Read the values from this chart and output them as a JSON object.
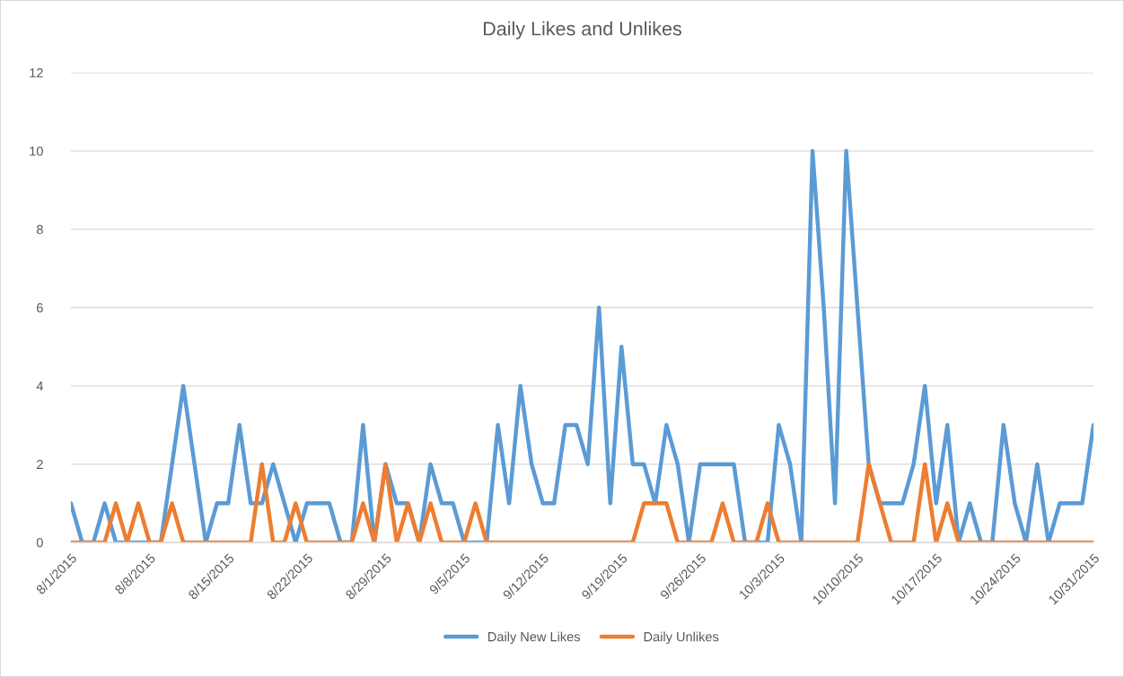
{
  "chart_data": {
    "type": "line",
    "title": "Daily Likes and Unlikes",
    "x": [
      "2015-08-01",
      "2015-08-02",
      "2015-08-03",
      "2015-08-04",
      "2015-08-05",
      "2015-08-06",
      "2015-08-07",
      "2015-08-08",
      "2015-08-09",
      "2015-08-10",
      "2015-08-11",
      "2015-08-12",
      "2015-08-13",
      "2015-08-14",
      "2015-08-15",
      "2015-08-16",
      "2015-08-17",
      "2015-08-18",
      "2015-08-19",
      "2015-08-20",
      "2015-08-21",
      "2015-08-22",
      "2015-08-23",
      "2015-08-24",
      "2015-08-25",
      "2015-08-26",
      "2015-08-27",
      "2015-08-28",
      "2015-08-29",
      "2015-08-30",
      "2015-08-31",
      "2015-09-01",
      "2015-09-02",
      "2015-09-03",
      "2015-09-04",
      "2015-09-05",
      "2015-09-06",
      "2015-09-07",
      "2015-09-08",
      "2015-09-09",
      "2015-09-10",
      "2015-09-11",
      "2015-09-12",
      "2015-09-13",
      "2015-09-14",
      "2015-09-15",
      "2015-09-16",
      "2015-09-17",
      "2015-09-18",
      "2015-09-19",
      "2015-09-20",
      "2015-09-21",
      "2015-09-22",
      "2015-09-23",
      "2015-09-24",
      "2015-09-25",
      "2015-09-26",
      "2015-09-27",
      "2015-09-28",
      "2015-09-29",
      "2015-09-30",
      "2015-10-01",
      "2015-10-02",
      "2015-10-03",
      "2015-10-04",
      "2015-10-05",
      "2015-10-06",
      "2015-10-07",
      "2015-10-08",
      "2015-10-09",
      "2015-10-10",
      "2015-10-11",
      "2015-10-12",
      "2015-10-13",
      "2015-10-14",
      "2015-10-15",
      "2015-10-16",
      "2015-10-17",
      "2015-10-18",
      "2015-10-19",
      "2015-10-20",
      "2015-10-21",
      "2015-10-22",
      "2015-10-23",
      "2015-10-24",
      "2015-10-25",
      "2015-10-26",
      "2015-10-27",
      "2015-10-28",
      "2015-10-29",
      "2015-10-30",
      "2015-10-31"
    ],
    "series": [
      {
        "name": "Daily New Likes",
        "color": "#5b9bd5",
        "values": [
          1,
          0,
          0,
          1,
          0,
          0,
          0,
          0,
          0,
          2,
          4,
          2,
          0,
          1,
          1,
          3,
          1,
          1,
          2,
          1,
          0,
          1,
          1,
          1,
          0,
          0,
          3,
          0,
          2,
          1,
          1,
          0,
          2,
          1,
          1,
          0,
          0,
          0,
          3,
          1,
          4,
          2,
          1,
          1,
          3,
          3,
          2,
          6,
          1,
          5,
          2,
          2,
          1,
          3,
          2,
          0,
          2,
          2,
          2,
          2,
          0,
          0,
          0,
          3,
          2,
          0,
          10,
          6,
          1,
          10,
          6,
          2,
          1,
          1,
          1,
          2,
          4,
          1,
          3,
          0,
          1,
          0,
          0,
          3,
          1,
          0,
          2,
          0,
          1,
          1,
          1,
          3
        ]
      },
      {
        "name": "Daily Unlikes",
        "color": "#ed7d31",
        "values": [
          0,
          0,
          0,
          0,
          1,
          0,
          1,
          0,
          0,
          1,
          0,
          0,
          0,
          0,
          0,
          0,
          0,
          2,
          0,
          0,
          1,
          0,
          0,
          0,
          0,
          0,
          1,
          0,
          2,
          0,
          1,
          0,
          1,
          0,
          0,
          0,
          1,
          0,
          0,
          0,
          0,
          0,
          0,
          0,
          0,
          0,
          0,
          0,
          0,
          0,
          0,
          1,
          1,
          1,
          0,
          0,
          0,
          0,
          1,
          0,
          0,
          0,
          1,
          0,
          0,
          0,
          0,
          0,
          0,
          0,
          0,
          2,
          1,
          0,
          0,
          0,
          2,
          0,
          1,
          0,
          0,
          0,
          0,
          0,
          0,
          0,
          0,
          0,
          0,
          0,
          0,
          0
        ]
      }
    ],
    "xlim": [
      "2015-08-01",
      "2015-10-31"
    ],
    "xticks": [
      {
        "value": "2015-08-01",
        "label": "8/1/2015"
      },
      {
        "value": "2015-08-08",
        "label": "8/8/2015"
      },
      {
        "value": "2015-08-15",
        "label": "8/15/2015"
      },
      {
        "value": "2015-08-22",
        "label": "8/22/2015"
      },
      {
        "value": "2015-08-29",
        "label": "8/29/2015"
      },
      {
        "value": "2015-09-05",
        "label": "9/5/2015"
      },
      {
        "value": "2015-09-12",
        "label": "9/12/2015"
      },
      {
        "value": "2015-09-19",
        "label": "9/19/2015"
      },
      {
        "value": "2015-09-26",
        "label": "9/26/2015"
      },
      {
        "value": "2015-10-03",
        "label": "10/3/2015"
      },
      {
        "value": "2015-10-10",
        "label": "10/10/2015"
      },
      {
        "value": "2015-10-17",
        "label": "10/17/2015"
      },
      {
        "value": "2015-10-24",
        "label": "10/24/2015"
      },
      {
        "value": "2015-10-31",
        "label": "10/31/2015"
      }
    ],
    "ylim": [
      0,
      12
    ],
    "yticks": [
      0,
      2,
      4,
      6,
      8,
      10,
      12
    ],
    "grid": "y",
    "legend": "bottom"
  }
}
